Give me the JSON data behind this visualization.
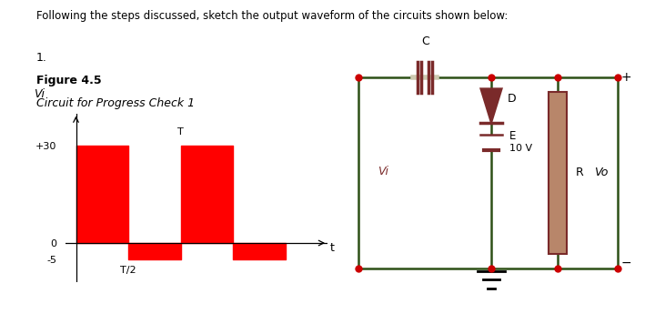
{
  "header_text": "Following the steps discussed, sketch the output waveform of the circuits shown below:",
  "number_label": "1.",
  "figure_label": "Figure 4.5",
  "caption": "Circuit for Progress Check 1",
  "bg_color": "#ffffff",
  "waveform": {
    "yticks": [
      -5,
      0,
      30
    ],
    "yticklabels": [
      "-5",
      "0",
      "+30"
    ],
    "xtick_label": "T/2",
    "ylim": [
      -12,
      40
    ],
    "xlim": [
      -0.2,
      4.8
    ]
  },
  "circuit": {
    "bg_color": "#cdc9b0",
    "wire_color": "#2d5016",
    "component_color": "#7a2a2a",
    "dot_color": "#cc0000",
    "resistor_fill": "#b8866a"
  }
}
